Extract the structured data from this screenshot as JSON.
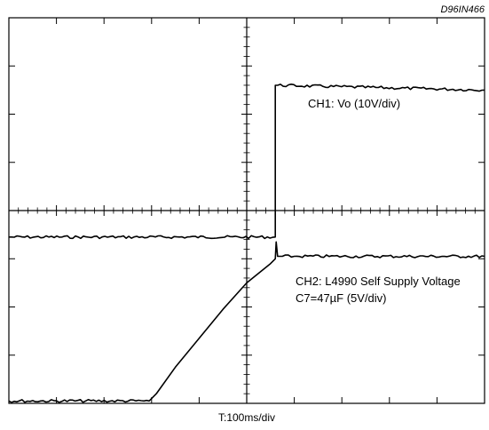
{
  "figure_id": "D96IN466",
  "chart_data": {
    "type": "line",
    "xlabel": "T:100ms/div",
    "grid": "10x8 divisions, dashed center crosshair with minor ticks",
    "x_divisions": 10,
    "y_divisions": 8,
    "series": [
      {
        "name": "CH1: Vo (10V/div)",
        "description": "Output voltage: flat near 0 V, steps up sharply at ~5.6 div to ~3.1 div above its baseline, then stays flat with ripple",
        "baseline_div_from_bottom": 3.45,
        "step_x_div": 5.6,
        "high_div_from_bottom": 6.55,
        "points": [
          [
            0,
            3.45
          ],
          [
            5.6,
            3.45
          ],
          [
            5.6,
            6.6
          ],
          [
            10,
            6.5
          ]
        ]
      },
      {
        "name": "CH2: L4990 Self Supply Voltage",
        "sublabel": "C7=47µF (5V/div)",
        "description": "Self supply voltage: flat near 0 until ~3.0 div, then charges along a curve (C7=47µF), small spike at ~5.6 div, then settles flat",
        "points": [
          [
            0,
            0.05
          ],
          [
            2.95,
            0.05
          ],
          [
            3.1,
            0.2
          ],
          [
            3.5,
            0.75
          ],
          [
            4.0,
            1.35
          ],
          [
            4.5,
            1.95
          ],
          [
            5.0,
            2.5
          ],
          [
            5.5,
            2.9
          ],
          [
            5.6,
            3.0
          ],
          [
            5.62,
            3.35
          ],
          [
            5.65,
            3.05
          ],
          [
            5.75,
            3.05
          ],
          [
            6.0,
            3.05
          ],
          [
            10,
            3.05
          ]
        ]
      }
    ]
  }
}
